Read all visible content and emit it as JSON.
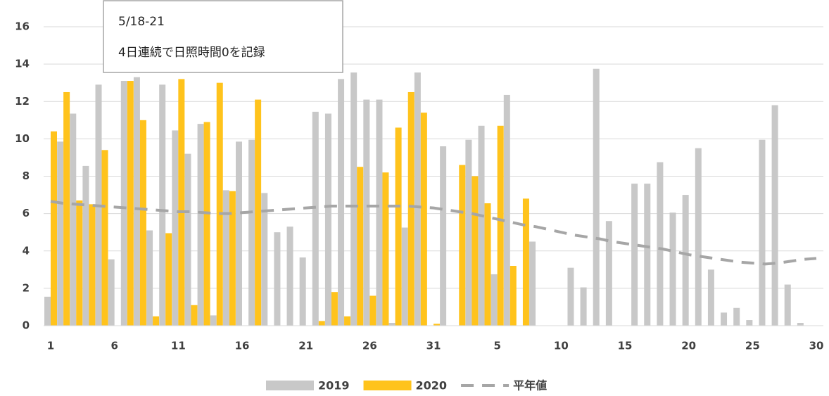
{
  "chart_data": {
    "type": "bar",
    "categories": [
      "1",
      null,
      null,
      null,
      null,
      "6",
      null,
      null,
      null,
      null,
      "11",
      null,
      null,
      null,
      null,
      "16",
      null,
      null,
      null,
      null,
      "21",
      null,
      null,
      null,
      null,
      "26",
      null,
      null,
      null,
      null,
      "31",
      null,
      null,
      null,
      null,
      "5",
      null,
      null,
      null,
      null,
      "10",
      null,
      null,
      null,
      null,
      "15",
      null,
      null,
      null,
      null,
      "20",
      null,
      null,
      null,
      null,
      "25",
      null,
      null,
      null,
      null,
      "30"
    ],
    "series": [
      {
        "name": "2019",
        "color": "#c8c8c8",
        "values": [
          1.55,
          9.85,
          11.35,
          8.55,
          12.9,
          3.55,
          13.1,
          13.3,
          5.1,
          12.9,
          10.45,
          9.2,
          10.8,
          0.55,
          7.25,
          9.85,
          9.95,
          7.1,
          5.0,
          5.3,
          3.65,
          11.45,
          11.35,
          13.2,
          13.55,
          12.1,
          12.1,
          0.15,
          5.25,
          13.55,
          0,
          9.6,
          0,
          9.95,
          10.7,
          2.75,
          12.35,
          0,
          4.5,
          0,
          0,
          3.1,
          2.05,
          13.75,
          5.6,
          0,
          7.6,
          7.6,
          8.75,
          6.05,
          7.0,
          9.5,
          3.0,
          0.7,
          0.95,
          0.3,
          9.95,
          11.8,
          2.2,
          0.15,
          0
        ]
      },
      {
        "name": "2020",
        "color": "#ffc31c",
        "values": [
          10.4,
          12.5,
          6.7,
          6.5,
          9.4,
          0,
          13.1,
          11.0,
          0.5,
          4.95,
          13.2,
          1.1,
          10.9,
          13.0,
          7.2,
          0,
          12.1,
          0,
          0,
          0,
          0,
          0.25,
          1.8,
          0.5,
          8.5,
          1.6,
          8.2,
          10.6,
          12.5,
          11.4,
          0.1,
          0,
          8.6,
          8.0,
          6.55,
          10.7,
          3.2,
          6.8,
          null,
          null,
          null,
          null,
          null,
          null,
          null,
          null,
          null,
          null,
          null,
          null,
          null,
          null,
          null,
          null,
          null,
          null,
          null,
          null,
          null,
          null,
          null
        ]
      },
      {
        "name": "平年値",
        "color": "#a6a6a6",
        "type": "line",
        "dashed": true,
        "values": [
          6.65,
          6.55,
          6.5,
          6.45,
          6.4,
          6.35,
          6.3,
          6.25,
          6.2,
          6.15,
          6.1,
          6.1,
          6.05,
          6.0,
          6.0,
          6.05,
          6.1,
          6.15,
          6.2,
          6.25,
          6.3,
          6.35,
          6.4,
          6.4,
          6.4,
          6.4,
          6.4,
          6.4,
          6.4,
          6.35,
          6.3,
          6.2,
          6.1,
          6.0,
          5.85,
          5.7,
          5.55,
          5.4,
          5.3,
          5.15,
          5.0,
          4.85,
          4.75,
          4.65,
          4.5,
          4.4,
          4.3,
          4.2,
          4.1,
          3.95,
          3.8,
          3.7,
          3.6,
          3.5,
          3.4,
          3.35,
          3.3,
          3.35,
          3.45,
          3.55,
          3.6
        ]
      }
    ],
    "ylim": [
      0,
      16
    ],
    "yticks": [
      0,
      2,
      4,
      6,
      8,
      10,
      12,
      14,
      16
    ],
    "grid": true,
    "annotation": {
      "lines": [
        "5/18-21",
        "4日連続で日照時間0を記録"
      ]
    },
    "legend": "bottom"
  }
}
